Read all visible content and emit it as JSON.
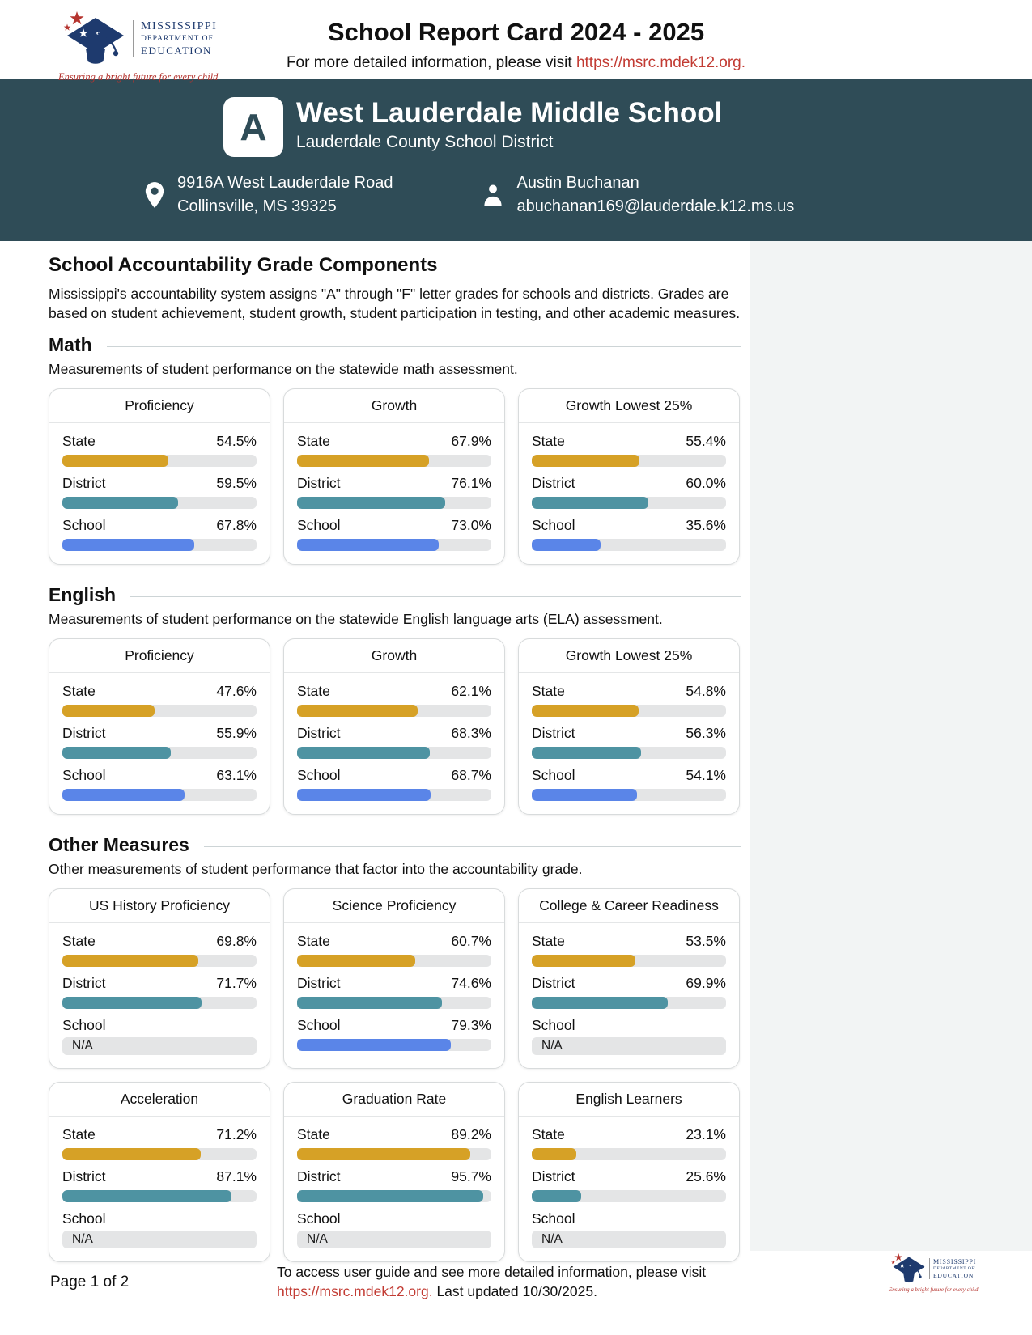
{
  "logo": {
    "org_line1": "MISSISSIPPI",
    "org_line2": "DEPARTMENT OF",
    "org_line3": "EDUCATION",
    "tagline": "Ensuring a bright future for every child"
  },
  "header": {
    "title": "School Report Card 2024 - 2025",
    "subtitle_text": "For more detailed information, please visit ",
    "subtitle_link": "https://msrc.mdek12.org."
  },
  "banner": {
    "grade": "A",
    "school_name": "West Lauderdale Middle School",
    "district_name": "Lauderdale County School District",
    "address_line1": "9916A West Lauderdale Road",
    "address_line2": "Collinsville, MS 39325",
    "contact_name": "Austin Buchanan",
    "contact_email": "abuchanan169@lauderdale.k12.ms.us"
  },
  "intro": {
    "title": "School Accountability Grade Components",
    "description": "Mississippi's accountability system assigns \"A\" through \"F\" letter grades for schools and districts. Grades are based on student achievement, student growth, student participation in testing, and other academic measures."
  },
  "colors": {
    "state": "#D6A126",
    "district": "#4E93A2",
    "school": "#5A85E8",
    "track": "#E4E5E6",
    "banner": "#2F4C57",
    "link": "#C23B33"
  },
  "icons": {
    "location": "location-pin-icon",
    "contact": "person-icon",
    "logo_cap": "graduation-cap-icon"
  },
  "sections": [
    {
      "title": "Math",
      "description": "Measurements of student performance on the statewide math assessment.",
      "cards": [
        {
          "title": "Proficiency",
          "rows": [
            {
              "label": "State",
              "value": "54.5%",
              "pct": 54.5,
              "series": "state"
            },
            {
              "label": "District",
              "value": "59.5%",
              "pct": 59.5,
              "series": "district"
            },
            {
              "label": "School",
              "value": "67.8%",
              "pct": 67.8,
              "series": "school"
            }
          ]
        },
        {
          "title": "Growth",
          "rows": [
            {
              "label": "State",
              "value": "67.9%",
              "pct": 67.9,
              "series": "state"
            },
            {
              "label": "District",
              "value": "76.1%",
              "pct": 76.1,
              "series": "district"
            },
            {
              "label": "School",
              "value": "73.0%",
              "pct": 73.0,
              "series": "school"
            }
          ]
        },
        {
          "title": "Growth Lowest 25%",
          "rows": [
            {
              "label": "State",
              "value": "55.4%",
              "pct": 55.4,
              "series": "state"
            },
            {
              "label": "District",
              "value": "60.0%",
              "pct": 60.0,
              "series": "district"
            },
            {
              "label": "School",
              "value": "35.6%",
              "pct": 35.6,
              "series": "school"
            }
          ]
        }
      ]
    },
    {
      "title": "English",
      "description": "Measurements of student performance on the statewide English language arts (ELA) assessment.",
      "cards": [
        {
          "title": "Proficiency",
          "rows": [
            {
              "label": "State",
              "value": "47.6%",
              "pct": 47.6,
              "series": "state"
            },
            {
              "label": "District",
              "value": "55.9%",
              "pct": 55.9,
              "series": "district"
            },
            {
              "label": "School",
              "value": "63.1%",
              "pct": 63.1,
              "series": "school"
            }
          ]
        },
        {
          "title": "Growth",
          "rows": [
            {
              "label": "State",
              "value": "62.1%",
              "pct": 62.1,
              "series": "state"
            },
            {
              "label": "District",
              "value": "68.3%",
              "pct": 68.3,
              "series": "district"
            },
            {
              "label": "School",
              "value": "68.7%",
              "pct": 68.7,
              "series": "school"
            }
          ]
        },
        {
          "title": "Growth Lowest 25%",
          "rows": [
            {
              "label": "State",
              "value": "54.8%",
              "pct": 54.8,
              "series": "state"
            },
            {
              "label": "District",
              "value": "56.3%",
              "pct": 56.3,
              "series": "district"
            },
            {
              "label": "School",
              "value": "54.1%",
              "pct": 54.1,
              "series": "school"
            }
          ]
        }
      ]
    },
    {
      "title": "Other Measures",
      "description": "Other measurements of student performance that factor into the accountability grade.",
      "cards": [
        {
          "title": "US History Proficiency",
          "rows": [
            {
              "label": "State",
              "value": "69.8%",
              "pct": 69.8,
              "series": "state"
            },
            {
              "label": "District",
              "value": "71.7%",
              "pct": 71.7,
              "series": "district"
            },
            {
              "label": "School",
              "value": "N/A",
              "na": true,
              "series": "school"
            }
          ]
        },
        {
          "title": "Science Proficiency",
          "rows": [
            {
              "label": "State",
              "value": "60.7%",
              "pct": 60.7,
              "series": "state"
            },
            {
              "label": "District",
              "value": "74.6%",
              "pct": 74.6,
              "series": "district"
            },
            {
              "label": "School",
              "value": "79.3%",
              "pct": 79.3,
              "series": "school"
            }
          ]
        },
        {
          "title": "College & Career Readiness",
          "rows": [
            {
              "label": "State",
              "value": "53.5%",
              "pct": 53.5,
              "series": "state"
            },
            {
              "label": "District",
              "value": "69.9%",
              "pct": 69.9,
              "series": "district"
            },
            {
              "label": "School",
              "value": "N/A",
              "na": true,
              "series": "school"
            }
          ]
        },
        {
          "title": "Acceleration",
          "rows": [
            {
              "label": "State",
              "value": "71.2%",
              "pct": 71.2,
              "series": "state"
            },
            {
              "label": "District",
              "value": "87.1%",
              "pct": 87.1,
              "series": "district"
            },
            {
              "label": "School",
              "value": "N/A",
              "na": true,
              "series": "school"
            }
          ]
        },
        {
          "title": "Graduation Rate",
          "rows": [
            {
              "label": "State",
              "value": "89.2%",
              "pct": 89.2,
              "series": "state"
            },
            {
              "label": "District",
              "value": "95.7%",
              "pct": 95.7,
              "series": "district"
            },
            {
              "label": "School",
              "value": "N/A",
              "na": true,
              "series": "school"
            }
          ]
        },
        {
          "title": "English Learners",
          "rows": [
            {
              "label": "State",
              "value": "23.1%",
              "pct": 23.1,
              "series": "state"
            },
            {
              "label": "District",
              "value": "25.6%",
              "pct": 25.6,
              "series": "district"
            },
            {
              "label": "School",
              "value": "N/A",
              "na": true,
              "series": "school"
            }
          ]
        }
      ]
    }
  ],
  "footer": {
    "page_label": "Page 1 of 2",
    "note_line1": "To access user guide and see more detailed information, please visit",
    "note_link": "https://msrc.mdek12.org.",
    "note_line2": " Last updated 10/30/2025."
  }
}
